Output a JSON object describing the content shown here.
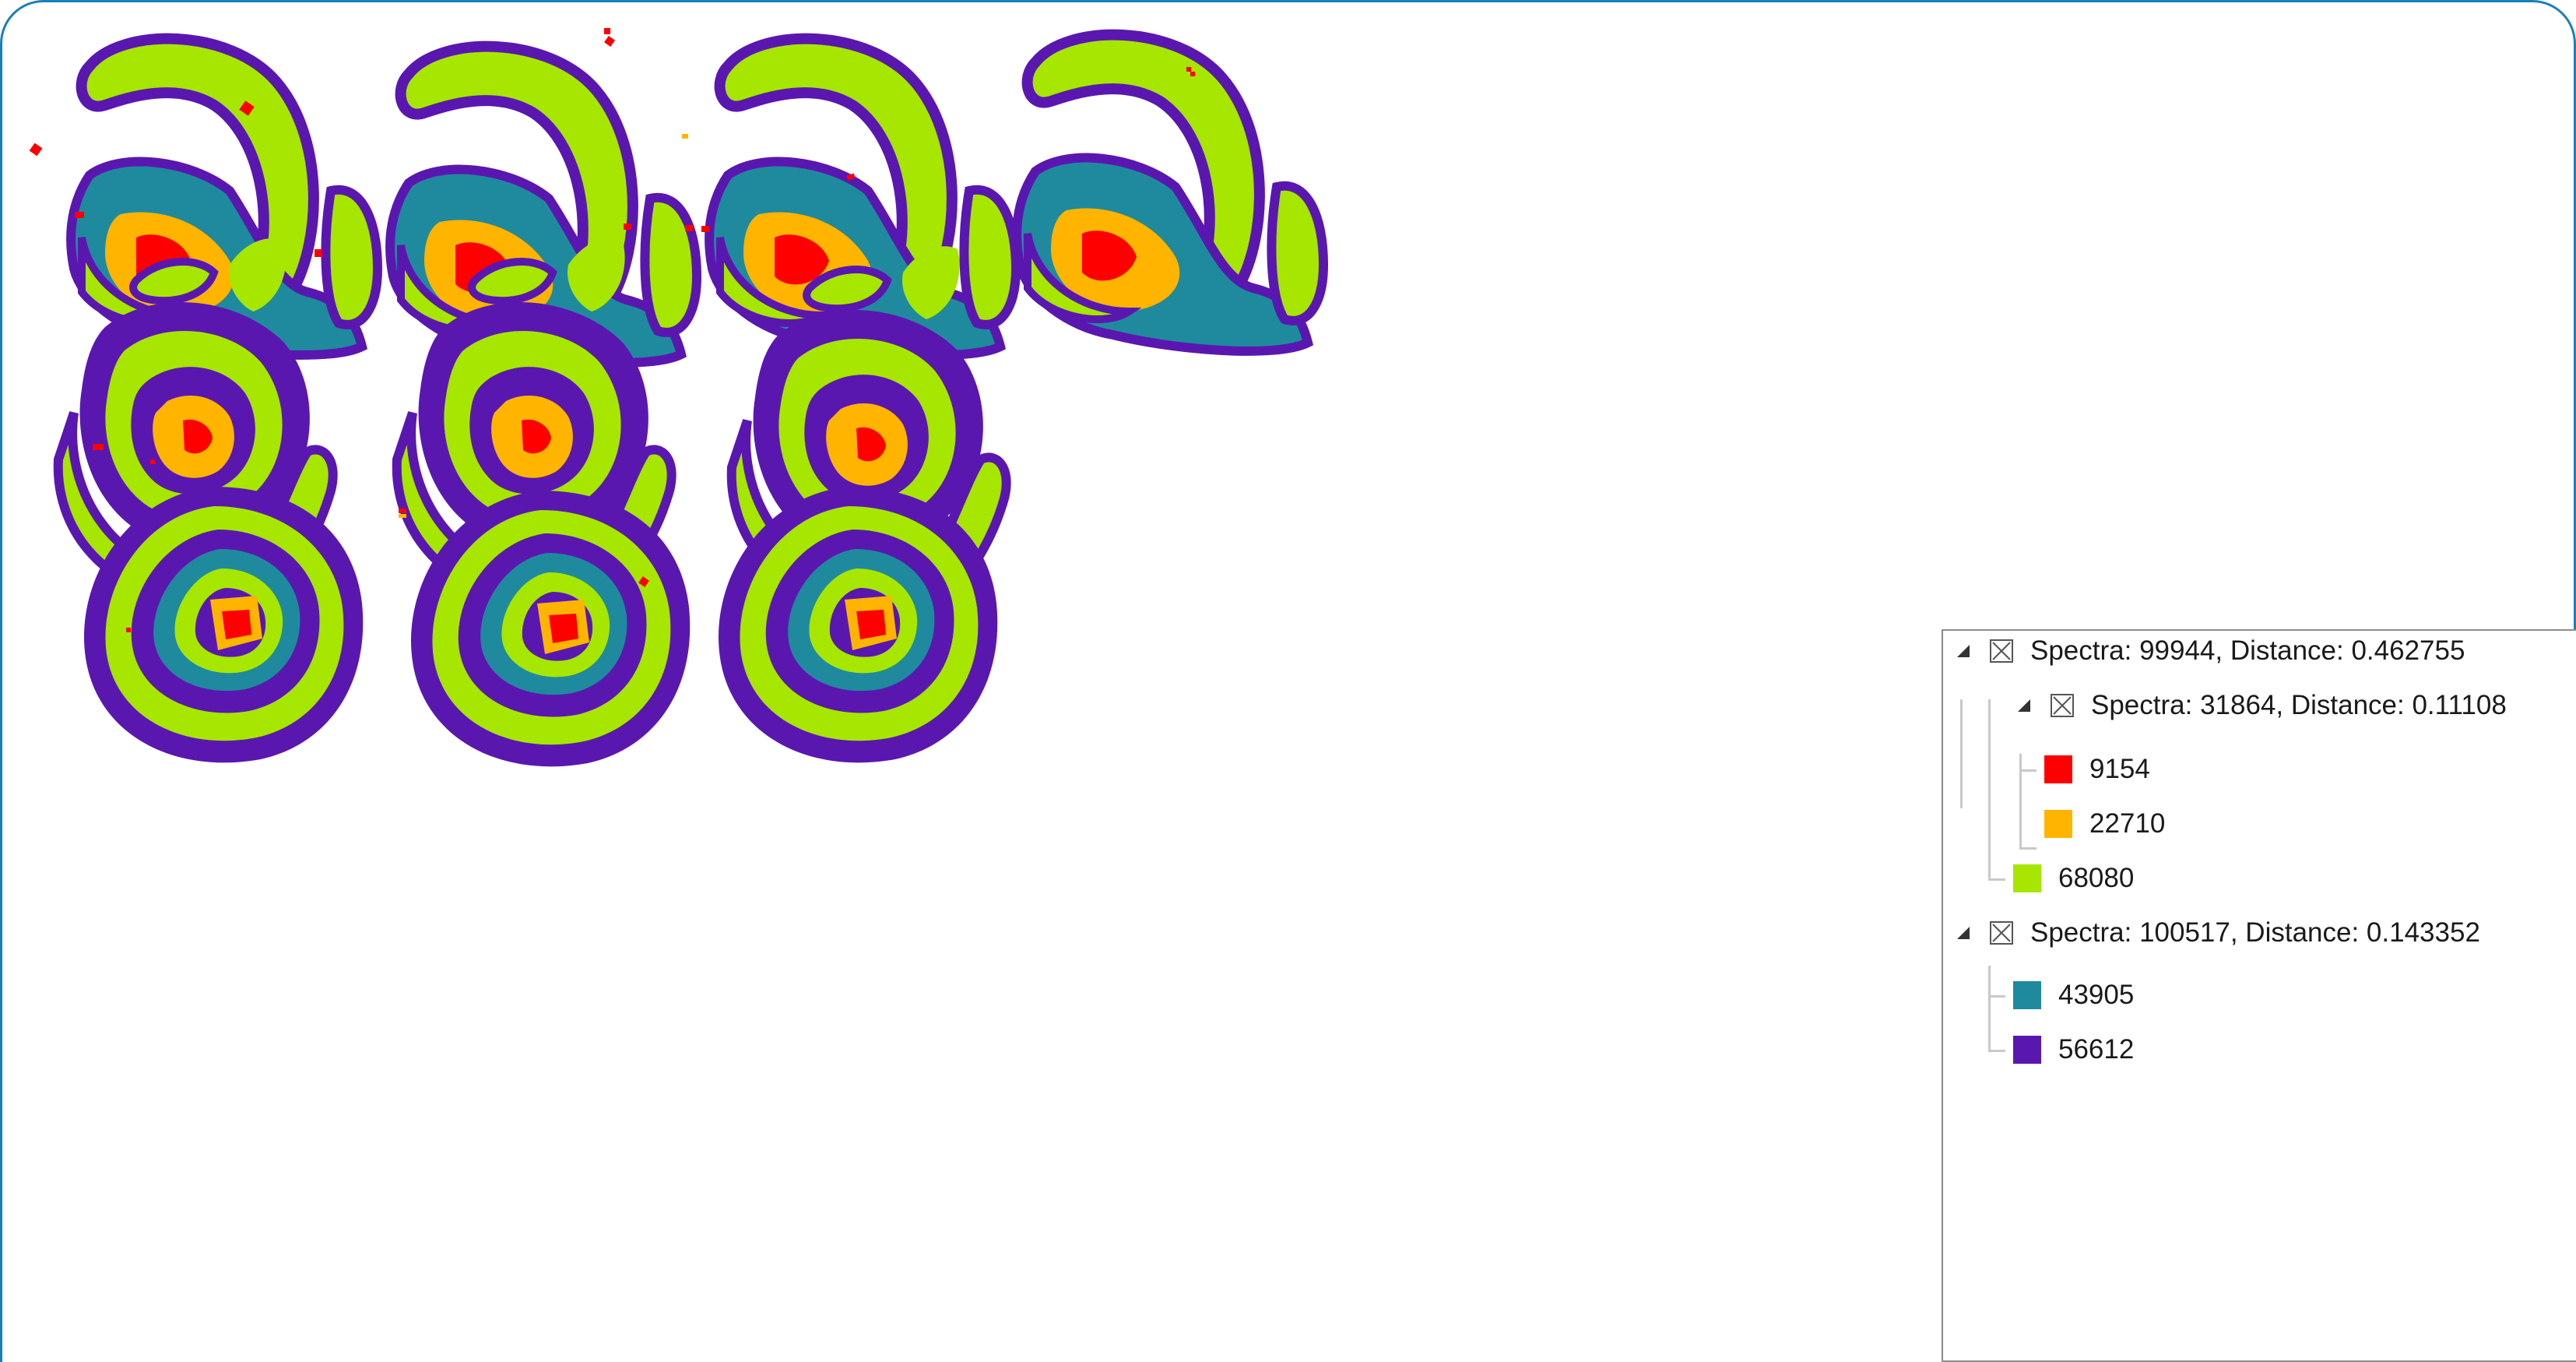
{
  "colors": {
    "frame_border": "#1b7fb8",
    "red": "#ff0000",
    "orange": "#ffb400",
    "lime": "#a6e600",
    "teal": "#1f8a9e",
    "purple": "#5a17b0"
  },
  "legend": {
    "nodes": [
      {
        "label": "Spectra: 99944, Distance: 0.462755",
        "kind": "group",
        "icon": "collapse-triangle-icon"
      },
      {
        "label": "Spectra: 31864, Distance: 0.11108",
        "kind": "group",
        "icon": "collapse-triangle-icon"
      },
      {
        "label": "9154",
        "kind": "leaf",
        "color": "#ff0000"
      },
      {
        "label": "22710",
        "kind": "leaf",
        "color": "#ffb400"
      },
      {
        "label": "68080",
        "kind": "leaf",
        "color": "#a6e600"
      },
      {
        "label": "Spectra: 100517, Distance: 0.143352",
        "kind": "group",
        "icon": "collapse-triangle-icon"
      },
      {
        "label": "43905",
        "kind": "leaf",
        "color": "#1f8a9e"
      },
      {
        "label": "56612",
        "kind": "leaf",
        "color": "#5a17b0"
      }
    ]
  },
  "tissue_sections": {
    "count": 11,
    "description_icon": "tissue-section-segmentation-map"
  }
}
